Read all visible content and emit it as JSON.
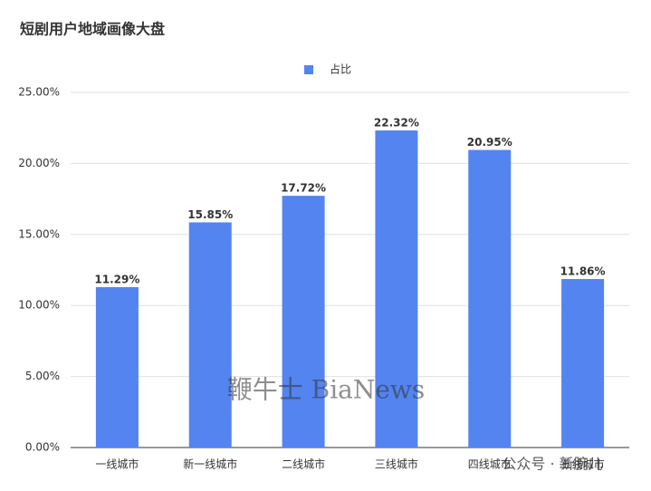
{
  "chart_data": {
    "type": "bar",
    "title": "短剧用户地域画像大盘",
    "categories": [
      "一线城市",
      "新一线城市",
      "二线城市",
      "三线城市",
      "四线城市",
      "五线城市"
    ],
    "series": [
      {
        "name": "占比",
        "color": "#5384f0",
        "values": [
          11.29,
          15.85,
          17.72,
          22.32,
          20.95,
          11.86
        ],
        "value_labels": [
          "11.29%",
          "15.85%",
          "17.72%",
          "22.32%",
          "20.95%",
          "11.86%"
        ]
      }
    ],
    "ylim": [
      0,
      25
    ],
    "yticks": [
      {
        "value": 0,
        "label": "0.00%"
      },
      {
        "value": 5,
        "label": "5.00%"
      },
      {
        "value": 10,
        "label": "10.00%"
      },
      {
        "value": 15,
        "label": "15.00%"
      },
      {
        "value": 20,
        "label": "20.00%"
      },
      {
        "value": 25,
        "label": "25.00%"
      }
    ],
    "grid": true,
    "legend": "top",
    "watermarks": [
      "鞭牛士 BiaNews",
      "公众号 · 新腕儿"
    ]
  }
}
